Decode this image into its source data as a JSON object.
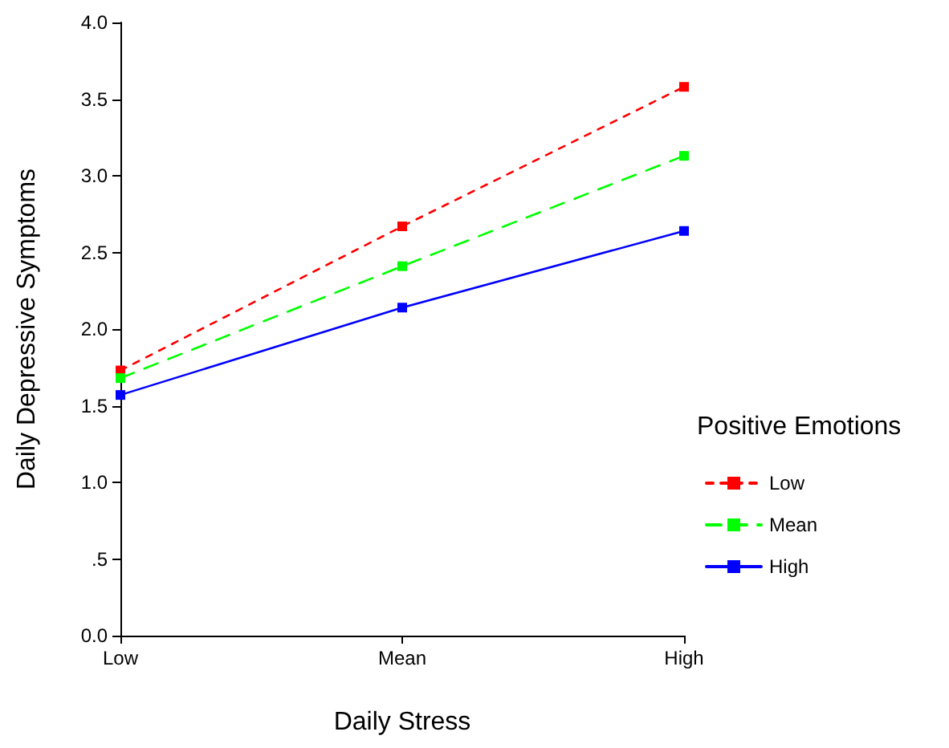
{
  "chart_data": {
    "type": "line",
    "xlabel": "Daily Stress",
    "ylabel": "Daily Depressive Symptoms",
    "legend_title": "Positive Emotions",
    "categories": [
      "Low",
      "Mean",
      "High"
    ],
    "series": [
      {
        "name": "Low",
        "color": "#ff0000",
        "line_style": "dotted",
        "values": [
          1.73,
          2.67,
          3.58
        ]
      },
      {
        "name": "Mean",
        "color": "#00ff00",
        "line_style": "dashed",
        "values": [
          1.68,
          2.41,
          3.13
        ]
      },
      {
        "name": "High",
        "color": "#0000ff",
        "line_style": "solid",
        "values": [
          1.57,
          2.14,
          2.64
        ]
      }
    ],
    "ylim": [
      0,
      4
    ],
    "yticks": [
      {
        "value": 0,
        "label": "0.0"
      },
      {
        "value": 0.5,
        "label": ".5"
      },
      {
        "value": 1,
        "label": "1.0"
      },
      {
        "value": 1.5,
        "label": "1.5"
      },
      {
        "value": 2,
        "label": "2.0"
      },
      {
        "value": 2.5,
        "label": "2.5"
      },
      {
        "value": 3,
        "label": "3.0"
      },
      {
        "value": 3.5,
        "label": "3.5"
      },
      {
        "value": 4,
        "label": "4.0"
      }
    ],
    "grid": false,
    "legend": "right",
    "marker": "square"
  }
}
